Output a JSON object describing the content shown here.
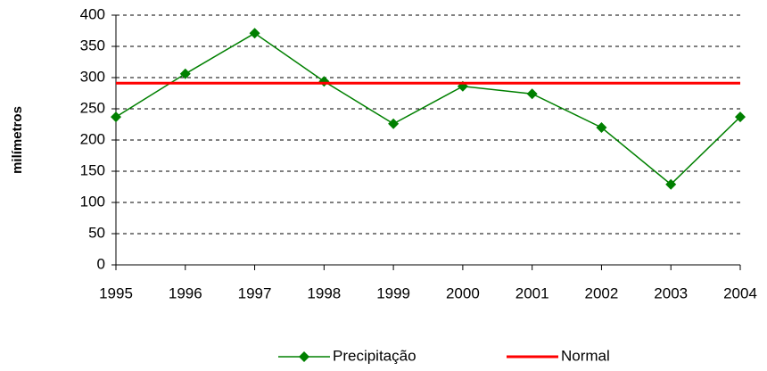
{
  "chart_data": {
    "type": "line",
    "y_label": "milímetros",
    "categories": [
      "1995",
      "1996",
      "1997",
      "1998",
      "1999",
      "2000",
      "2001",
      "2002",
      "2003",
      "2004"
    ],
    "series": [
      {
        "name": "Precipitação",
        "color": "#008000",
        "marker": "diamond",
        "values": [
          237,
          306,
          371,
          294,
          226,
          286,
          274,
          220,
          129,
          237
        ]
      },
      {
        "name": "Normal",
        "color": "#ff0000",
        "marker": "none",
        "values": [
          291,
          291,
          291,
          291,
          291,
          291,
          291,
          291,
          291,
          291
        ]
      }
    ],
    "ylim": [
      0,
      400
    ],
    "yticks": [
      0,
      50,
      100,
      150,
      200,
      250,
      300,
      350,
      400
    ],
    "grid": true,
    "legend": "bottom"
  }
}
